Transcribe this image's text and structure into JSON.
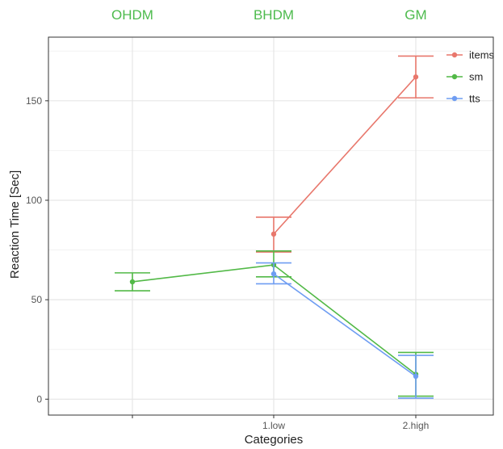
{
  "chart_data": {
    "type": "line",
    "title": "",
    "xlabel": "Categories",
    "ylabel": "Reaction Time [Sec]",
    "top_labels": [
      "OHDM",
      "BHDM",
      "GM"
    ],
    "x_ticks": [
      "",
      "1.low",
      "2.high"
    ],
    "y_ticks": [
      0,
      50,
      100,
      150
    ],
    "ylim": [
      -8,
      182
    ],
    "grid": true,
    "legend_position": "top-right",
    "colors": {
      "items": "#e8776c",
      "sm": "#52b947",
      "tts": "#6f9df2",
      "top_label": "#4dbb4d"
    },
    "series": [
      {
        "name": "items",
        "points": [
          {
            "x": 1,
            "y": 83,
            "lo": 74,
            "hi": 91.5
          },
          {
            "x": 2,
            "y": 162,
            "lo": 151.5,
            "hi": 172.5
          }
        ]
      },
      {
        "name": "sm",
        "points": [
          {
            "x": 0,
            "y": 59,
            "lo": 54.5,
            "hi": 63.5
          },
          {
            "x": 1,
            "y": 67.5,
            "lo": 61.5,
            "hi": 74.5
          },
          {
            "x": 2,
            "y": 12.5,
            "lo": 1.5,
            "hi": 23.5
          }
        ]
      },
      {
        "name": "tts",
        "points": [
          {
            "x": 1,
            "y": 63,
            "lo": 58,
            "hi": 68.5
          },
          {
            "x": 2,
            "y": 11.5,
            "lo": 0.5,
            "hi": 22
          }
        ]
      }
    ]
  }
}
